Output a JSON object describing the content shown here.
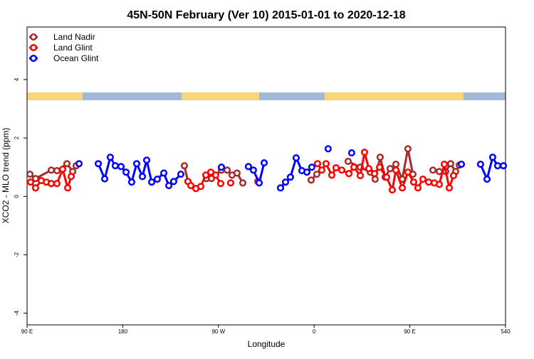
{
  "chart_data": {
    "type": "line",
    "title": "45N-50N February (Ver 10)   2015-01-01 to 2020-12-18",
    "xlabel": "Longitude",
    "ylabel": "XCO2 - MLO trend (ppm)",
    "xlim": [
      90,
      540
    ],
    "xticks": [
      {
        "value": 90,
        "label": "90 E"
      },
      180,
      {
        "value": 270,
        "label": "90 W"
      },
      {
        "value": 360,
        "label": "0"
      },
      {
        "value": 450,
        "label": "90 E"
      },
      540
    ],
    "ylim": [
      -4.4,
      5.8
    ],
    "yticks": [
      -4,
      -2,
      0,
      2,
      4
    ],
    "legend": "upper left",
    "series": [
      {
        "name": "Land Nadir",
        "color": "#a52a2a",
        "x": [
          92.7,
          98.0,
          112.8,
          118.1,
          127.5,
          132.9,
          136.2,
          null,
          238.0,
          241.3,
          null,
          258.7,
          263.4,
          272.8,
          278.2,
          282.8,
          287.5,
          292.9,
          null,
          357.2,
          362.5,
          null,
          392.0,
          403.4,
          412.8,
          417.4,
          422.1,
          426.8,
          431.5,
          436.9,
          442.9,
          448.2,
          452.9,
          null,
          471.7,
          477.7,
          483.7,
          488.4,
          493.1,
          496.5
        ],
        "values": [
          0.76,
          0.61,
          0.9,
          0.88,
          1.12,
          0.85,
          1.05,
          null,
          1.05,
          0.51,
          null,
          0.61,
          0.61,
          0.9,
          0.9,
          0.73,
          0.8,
          0.46,
          null,
          0.56,
          0.76,
          null,
          1.2,
          1.0,
          0.83,
          0.59,
          1.34,
          0.66,
          0.95,
          1.1,
          0.59,
          1.63,
          0.76,
          null,
          0.9,
          0.85,
          0.85,
          1.12,
          0.85,
          1.07
        ]
      },
      {
        "name": "Land Glint",
        "color": "#ff0000",
        "x": [
          93.3,
          98.0,
          103.4,
          108.1,
          112.8,
          118.1,
          123.5,
          128.2,
          131.5,
          null,
          241.3,
          244.0,
          248.7,
          253.4,
          258.1,
          262.8,
          267.4,
          272.1,
          null,
          281.5,
          null,
          307.0,
          null,
          363.2,
          367.2,
          371.2,
          376.6,
          380.6,
          386.0,
          392.7,
          397.4,
          403.4,
          407.4,
          411.4,
          416.8,
          421.5,
          428.1,
          433.5,
          436.9,
          442.9,
          448.2,
          453.6,
          457.6,
          462.3,
          467.7,
          473.0,
          477.7,
          482.4,
          487.1,
          491.1
        ],
        "values": [
          0.49,
          0.29,
          0.54,
          0.49,
          0.44,
          0.44,
          0.93,
          0.29,
          0.68,
          null,
          0.51,
          0.37,
          0.27,
          0.34,
          0.73,
          0.83,
          0.73,
          0.44,
          null,
          0.46,
          null,
          0.51,
          null,
          1.12,
          0.9,
          1.12,
          0.73,
          0.98,
          0.9,
          0.78,
          1.0,
          0.71,
          1.51,
          0.95,
          0.78,
          1.0,
          0.66,
          0.22,
          0.9,
          0.29,
          0.83,
          0.49,
          0.29,
          0.59,
          0.49,
          0.46,
          0.41,
          1.1,
          0.29,
          0.71
        ]
      },
      {
        "name": "Ocean Glint",
        "color": "#0000ff",
        "x": [
          138.9,
          null,
          157.0,
          163.0,
          168.3,
          173.0,
          178.4,
          183.1,
          188.4,
          193.1,
          198.5,
          202.5,
          207.2,
          212.5,
          218.6,
          223.3,
          227.9,
          234.6,
          null,
          272.8,
          null,
          298.2,
          302.9,
          308.3,
          313.0,
          null,
          328.4,
          333.1,
          337.7,
          343.1,
          348.5,
          353.2,
          357.8,
          null,
          373.2,
          null,
          395.3,
          null,
          498.5,
          null,
          516.5,
          522.6,
          527.9,
          532.6,
          538.0
        ],
        "values": [
          1.12,
          null,
          1.12,
          0.6,
          1.34,
          1.05,
          1.02,
          0.83,
          0.49,
          1.12,
          0.68,
          1.24,
          0.49,
          0.59,
          0.8,
          0.37,
          0.51,
          0.76,
          null,
          1.0,
          null,
          1.02,
          0.9,
          0.46,
          1.15,
          null,
          0.29,
          0.49,
          0.66,
          1.32,
          0.88,
          0.83,
          1.0,
          null,
          1.63,
          null,
          1.49,
          null,
          1.1,
          null,
          1.1,
          0.59,
          1.34,
          1.05,
          1.05
        ]
      }
    ]
  }
}
